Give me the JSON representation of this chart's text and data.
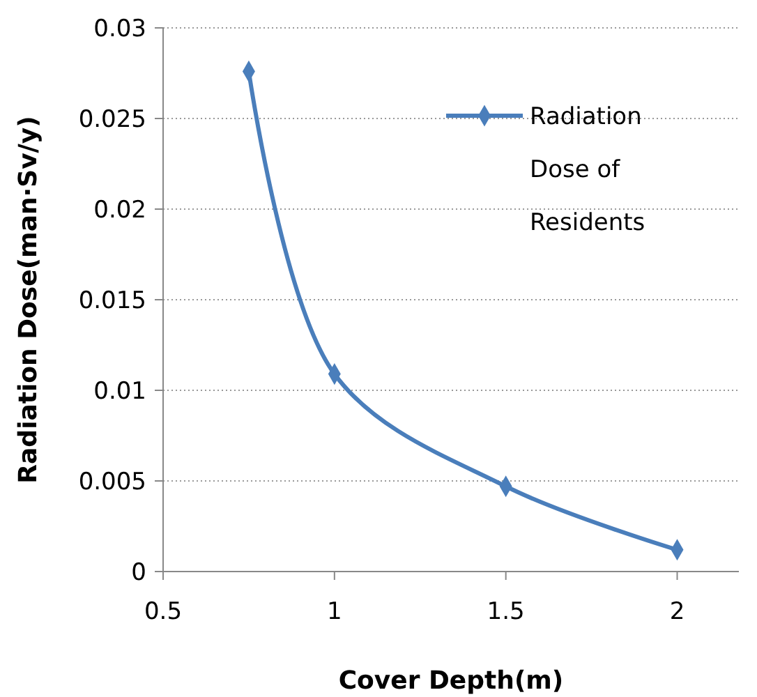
{
  "chart_data": {
    "type": "line",
    "xlabel": "Cover Depth(m)",
    "ylabel": "Radiation Dose(man·Sv/y)",
    "x": [
      0.75,
      1,
      1.5,
      2
    ],
    "series": [
      {
        "name": "Radiation Dose of Residents",
        "color": "#4a7ebb",
        "values": [
          0.0276,
          0.0109,
          0.0047,
          0.0012
        ]
      }
    ],
    "xlim": [
      0.5,
      2.18
    ],
    "xticks": [
      {
        "value": 0.5,
        "label": "0.5"
      },
      1,
      {
        "value": 1.5,
        "label": "1.5"
      },
      2
    ],
    "ylim": [
      0,
      0.03
    ],
    "yticks": [
      0,
      {
        "value": 0.005,
        "label": "0.005"
      },
      {
        "value": 0.01,
        "label": "0.01"
      },
      {
        "value": 0.015,
        "label": "0.015"
      },
      {
        "value": 0.02,
        "label": "0.02"
      },
      {
        "value": 0.025,
        "label": "0.025"
      },
      {
        "value": 0.03,
        "label": "0.03"
      }
    ],
    "grid": "y",
    "legend": "top right",
    "marker": "diamond",
    "line_style": "solid"
  }
}
